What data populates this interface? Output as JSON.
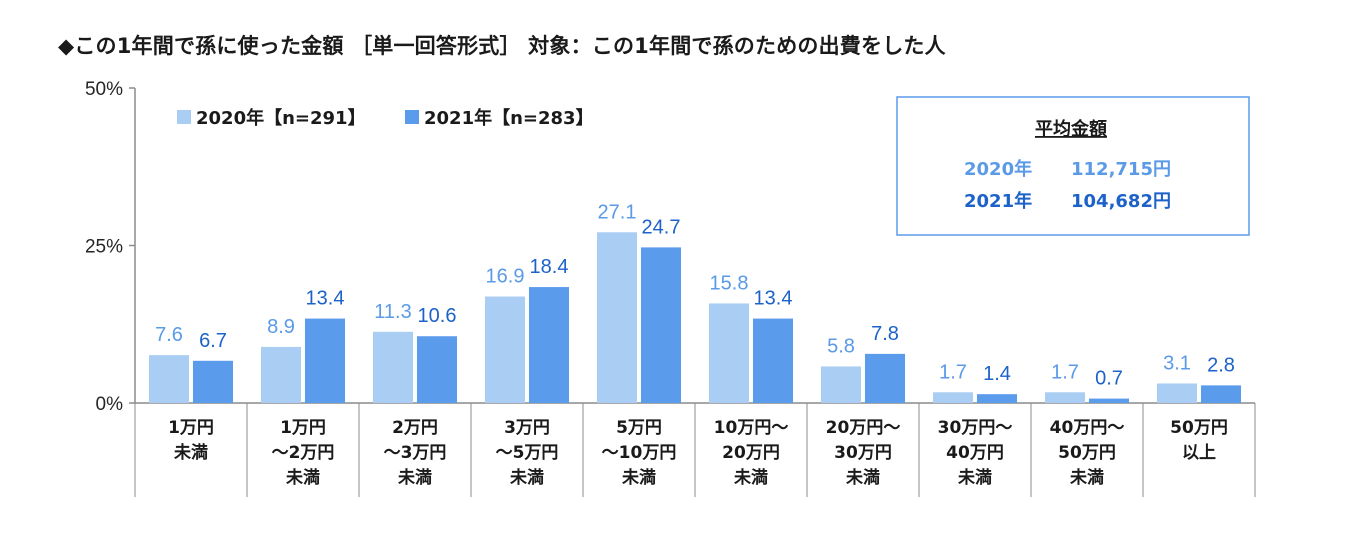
{
  "title": "◆この1年間で孫に使った金額 ［単一回答形式］ 対象：この1年間で孫のための出費をした人",
  "colors": {
    "series_2020": "#a9cdf3",
    "series_2021": "#5b9bec",
    "label_2020": "#5a9ae6",
    "label_2021": "#1c62c9",
    "axis": "#8c8c8c",
    "avg_box_border": "#5b9bec"
  },
  "legend": {
    "items": [
      "2020年【n=291】",
      "2021年【n=283】"
    ]
  },
  "average_box": {
    "title": "平均金額",
    "lines": [
      {
        "year": "2020年",
        "amount": "112,715円"
      },
      {
        "year": "2021年",
        "amount": "104,682円"
      }
    ]
  },
  "chart_data": {
    "type": "bar",
    "categories": [
      [
        "1万円",
        "未満"
      ],
      [
        "1万円",
        "～2万円",
        "未満"
      ],
      [
        "2万円",
        "～3万円",
        "未満"
      ],
      [
        "3万円",
        "～5万円",
        "未満"
      ],
      [
        "5万円",
        "～10万円",
        "未満"
      ],
      [
        "10万円～",
        "20万円",
        "未満"
      ],
      [
        "20万円～",
        "30万円",
        "未満"
      ],
      [
        "30万円～",
        "40万円",
        "未満"
      ],
      [
        "40万円～",
        "50万円",
        "未満"
      ],
      [
        "50万円",
        "以上"
      ]
    ],
    "series": [
      {
        "name": "2020年【n=291】",
        "values": [
          7.6,
          8.9,
          11.3,
          16.9,
          27.1,
          15.8,
          5.8,
          1.7,
          1.7,
          3.1
        ]
      },
      {
        "name": "2021年【n=283】",
        "values": [
          6.7,
          13.4,
          10.6,
          18.4,
          24.7,
          13.4,
          7.8,
          1.4,
          0.7,
          2.8
        ]
      }
    ],
    "value_labels": [
      [
        "7.6",
        "8.9",
        "11.3",
        "16.9",
        "27.1",
        "15.8",
        "5.8",
        "1.7",
        "1.7",
        "3.1"
      ],
      [
        "6.7",
        "13.4",
        "10.6",
        "18.4",
        "24.7",
        "13.4",
        "7.8",
        "1.4",
        "0.7",
        "2.8"
      ]
    ],
    "ylim": [
      0,
      50
    ],
    "yticks": [
      0,
      25,
      50
    ],
    "ytick_labels": [
      "0%",
      "25%",
      "50%"
    ],
    "grid": false,
    "legend_position": "top-left"
  }
}
